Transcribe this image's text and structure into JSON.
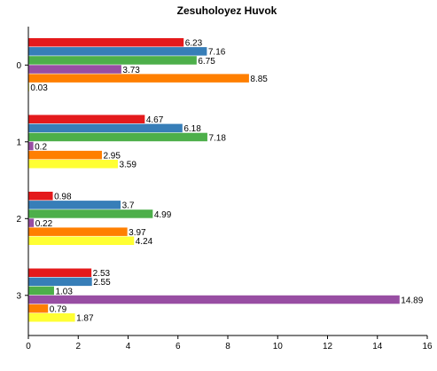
{
  "chart_data": {
    "type": "bar",
    "orientation": "horizontal",
    "title": "Zesuholoyez Huvok",
    "xlabel": "",
    "ylabel": "",
    "categories": [
      "0",
      "1",
      "2",
      "3"
    ],
    "xlim": [
      0,
      16
    ],
    "xticks": [
      "0",
      "2",
      "4",
      "6",
      "8",
      "10",
      "12",
      "14",
      "16"
    ],
    "grid": false,
    "legend": "none",
    "series": [
      {
        "color": "#e41a1c",
        "values": [
          6.23,
          4.67,
          0.98,
          2.53
        ],
        "labels": [
          "6.23",
          "4.67",
          "0.98",
          "2.53"
        ]
      },
      {
        "color": "#377eb8",
        "values": [
          7.16,
          6.18,
          3.7,
          2.55
        ],
        "labels": [
          "7.16",
          "6.18",
          "3.7",
          "2.55"
        ]
      },
      {
        "color": "#4daf4a",
        "values": [
          6.75,
          7.18,
          4.99,
          1.03
        ],
        "labels": [
          "6.75",
          "7.18",
          "4.99",
          "1.03"
        ]
      },
      {
        "color": "#984ea3",
        "values": [
          3.73,
          0.2,
          0.22,
          14.89
        ],
        "labels": [
          "3.73",
          "0.2",
          "0.22",
          "14.89"
        ]
      },
      {
        "color": "#ff7f00",
        "values": [
          8.85,
          2.95,
          3.97,
          0.79
        ],
        "labels": [
          "8.85",
          "2.95",
          "3.97",
          "0.79"
        ]
      },
      {
        "color": "#ffff33",
        "values": [
          0.03,
          3.59,
          4.24,
          1.87
        ],
        "labels": [
          "0.03",
          "3.59",
          "4.24",
          "1.87"
        ]
      }
    ]
  }
}
